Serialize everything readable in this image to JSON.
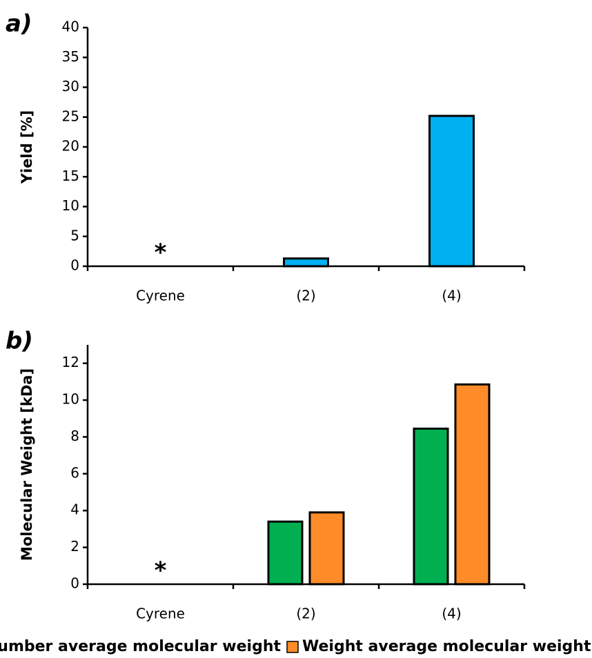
{
  "chart_data": [
    {
      "type": "bar",
      "panel_label": "a)",
      "y_label": "Yield [%]",
      "categories": [
        "Cyrene",
        "(2)",
        "(4)"
      ],
      "series": [
        {
          "name": "Yield",
          "color": "#00b0f0",
          "values": [
            null,
            1.3,
            25.2
          ]
        }
      ],
      "ylim": [
        0,
        40
      ],
      "yticks": [
        0,
        5,
        10,
        15,
        20,
        25,
        30,
        35,
        40
      ],
      "annotations": [
        {
          "category": "Cyrene",
          "text": "*"
        }
      ]
    },
    {
      "type": "bar",
      "panel_label": "b)",
      "y_label": "Molecular Weight [kDa]",
      "categories": [
        "Cyrene",
        "(2)",
        "(4)"
      ],
      "series": [
        {
          "name": "Number average molecular weight",
          "color": "#00b050",
          "values": [
            null,
            3.4,
            8.45
          ]
        },
        {
          "name": "Weight average molecular weight",
          "color": "#ff8c28",
          "values": [
            null,
            3.9,
            10.85
          ]
        }
      ],
      "ylim": [
        0,
        13
      ],
      "yticks": [
        0,
        2,
        4,
        6,
        8,
        10,
        12
      ],
      "annotations": [
        {
          "category": "Cyrene",
          "text": "*"
        }
      ],
      "legend": "bottom"
    }
  ]
}
